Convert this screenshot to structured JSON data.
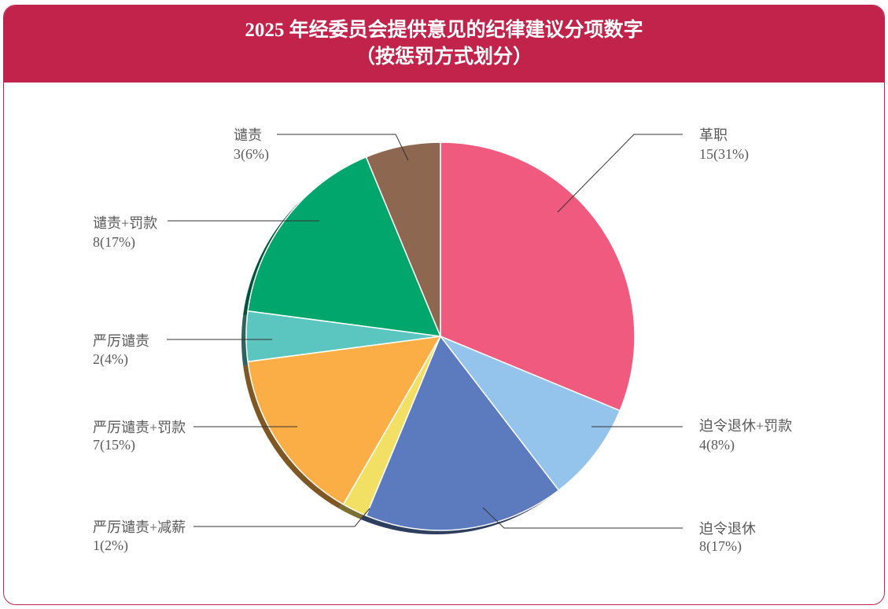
{
  "chart_data": {
    "type": "pie",
    "title": "2025 年经委员会提供意见的纪律建议分项数字",
    "subtitle": "（按惩罚方式划分）",
    "categories": [
      "革职",
      "迫令退休+罚款",
      "迫令退休",
      "严厉谴责+减薪",
      "严厉谴责+罚款",
      "严厉谴责",
      "谴责+罚款",
      "谴责"
    ],
    "values": [
      15,
      4,
      8,
      1,
      7,
      2,
      8,
      3
    ],
    "value_labels": [
      "15(31%)",
      "4(8%)",
      "8(17%)",
      "1(2%)",
      "7(15%)",
      "2(4%)",
      "8(17%)",
      "3(6%)"
    ],
    "colors": [
      "#EF5A7E",
      "#94C4EC",
      "#5C7BBE",
      "#F2E064",
      "#FBAE45",
      "#5BC5C0",
      "#00A66C",
      "#8E6750"
    ],
    "legend": "none"
  },
  "theme": {
    "banner_color": "#C1234A"
  }
}
